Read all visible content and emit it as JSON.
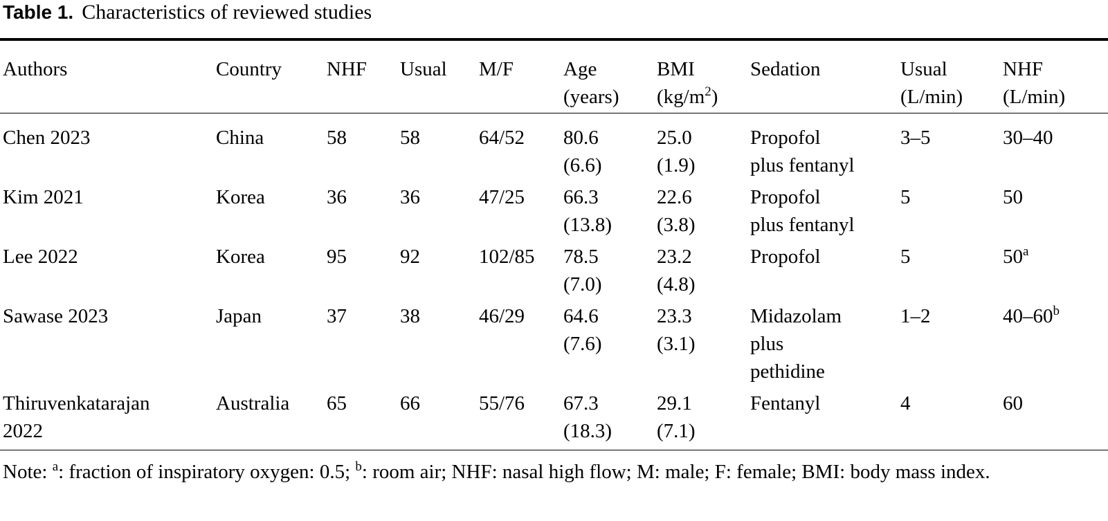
{
  "caption": {
    "label": "Table 1.",
    "title": "Characteristics of reviewed studies"
  },
  "table": {
    "headers": [
      {
        "line1": "Authors",
        "line2": ""
      },
      {
        "line1": "Country",
        "line2": ""
      },
      {
        "line1": "NHF",
        "line2": ""
      },
      {
        "line1": "Usual",
        "line2": ""
      },
      {
        "line1": "M/F",
        "line2": ""
      },
      {
        "line1": "Age",
        "line2": "(years)"
      },
      {
        "line1": "BMI",
        "line2": "(kg/m",
        "line2_sup": "2",
        "line2_after": ")"
      },
      {
        "line1": "Sedation",
        "line2": ""
      },
      {
        "line1": "Usual",
        "line2": "(L/min)"
      },
      {
        "line1": "NHF",
        "line2": "(L/min)"
      }
    ],
    "rows": [
      {
        "authors": [
          "Chen 2023"
        ],
        "country": "China",
        "nhf": "58",
        "usual": "58",
        "mf": "64/52",
        "age": [
          "80.6",
          "(6.6)"
        ],
        "bmi": [
          "25.0",
          "(1.9)"
        ],
        "sedation": [
          "Propofol",
          "plus fentanyl"
        ],
        "usual_flow": "3–5",
        "nhf_flow": "30–40",
        "nhf_flow_sup": ""
      },
      {
        "authors": [
          "Kim 2021"
        ],
        "country": "Korea",
        "nhf": "36",
        "usual": "36",
        "mf": "47/25",
        "age": [
          "66.3",
          "(13.8)"
        ],
        "bmi": [
          "22.6",
          "(3.8)"
        ],
        "sedation": [
          "Propofol",
          "plus fentanyl"
        ],
        "usual_flow": "5",
        "nhf_flow": "50",
        "nhf_flow_sup": ""
      },
      {
        "authors": [
          "Lee 2022"
        ],
        "country": "Korea",
        "nhf": "95",
        "usual": "92",
        "mf": "102/85",
        "age": [
          "78.5",
          "(7.0)"
        ],
        "bmi": [
          "23.2",
          "(4.8)"
        ],
        "sedation": [
          "Propofol"
        ],
        "usual_flow": "5",
        "nhf_flow": "50",
        "nhf_flow_sup": "a"
      },
      {
        "authors": [
          "Sawase 2023"
        ],
        "country": "Japan",
        "nhf": "37",
        "usual": "38",
        "mf": "46/29",
        "age": [
          "64.6",
          "(7.6)"
        ],
        "bmi": [
          "23.3",
          "(3.1)"
        ],
        "sedation": [
          "Midazolam",
          "plus",
          "pethidine"
        ],
        "usual_flow": "1–2",
        "nhf_flow": "40–60",
        "nhf_flow_sup": "b"
      },
      {
        "authors": [
          "Thiruvenkatarajan",
          "2022"
        ],
        "country": "Australia",
        "nhf": "65",
        "usual": "66",
        "mf": "55/76",
        "age": [
          "67.3",
          "(18.3)"
        ],
        "bmi": [
          "29.1",
          "(7.1)"
        ],
        "sedation": [
          "Fentanyl"
        ],
        "usual_flow": "4",
        "nhf_flow": "60",
        "nhf_flow_sup": ""
      }
    ]
  },
  "note": {
    "prefix": "Note: ",
    "sup_a": "a",
    "text_a": ": fraction of inspiratory oxygen: 0.5; ",
    "sup_b": "b",
    "text_b": ": room air; NHF: nasal high flow; M: male; F: female; BMI: body mass index."
  }
}
